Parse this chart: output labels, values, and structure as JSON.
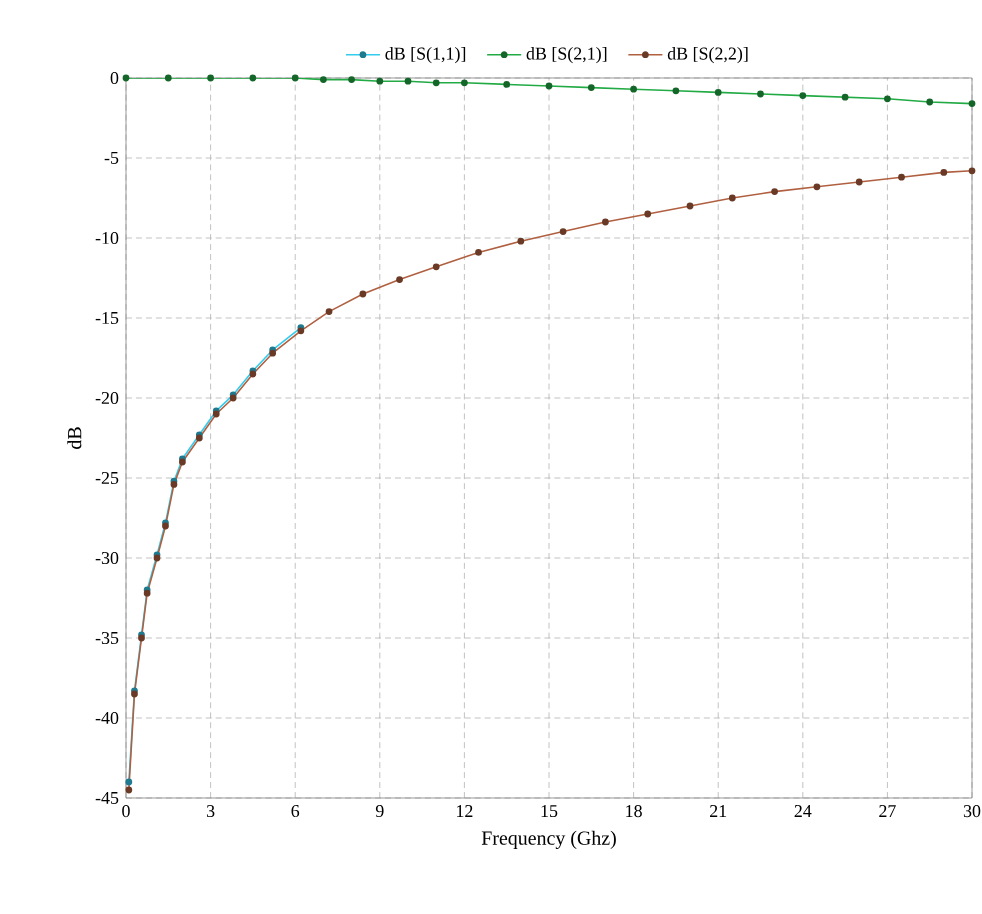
{
  "chart_data": {
    "type": "line",
    "xlabel": "Frequency (Ghz)",
    "ylabel": "dB",
    "xlim": [
      0,
      30
    ],
    "xticks": [
      0,
      3,
      6,
      9,
      12,
      15,
      18,
      21,
      24,
      27,
      30
    ],
    "ylim": [
      -45,
      0
    ],
    "yticks": [
      -45,
      -40,
      -35,
      -30,
      -25,
      -20,
      -15,
      -10,
      -5,
      0
    ],
    "grid": true,
    "legend": "top",
    "marker": "circle",
    "line_style": "solid",
    "series": [
      {
        "name": "dB [S(1,1)]",
        "color": "#33ccee",
        "x": [
          0.1,
          0.3,
          0.55,
          0.75,
          1.1,
          1.4,
          1.7,
          2,
          2.6,
          3.2,
          3.8,
          4.5,
          5.2,
          6.2
        ],
        "values": [
          -44,
          -38.3,
          -34.8,
          -32,
          -29.8,
          -27.8,
          -25.2,
          -23.8,
          -22.3,
          -20.8,
          -19.8,
          -18.3,
          -17,
          -15.6
        ]
      },
      {
        "name": "dB [S(2,1)]",
        "color": "#22aa44",
        "x": [
          0,
          1.5,
          3,
          4.5,
          6,
          7,
          8,
          9,
          10,
          11,
          12,
          13.5,
          15,
          16.5,
          18,
          19.5,
          21,
          22.5,
          24,
          25.5,
          27,
          28.5,
          30
        ],
        "values": [
          0,
          0,
          0,
          0,
          0,
          -0.1,
          -0.1,
          -0.2,
          -0.2,
          -0.3,
          -0.3,
          -0.4,
          -0.5,
          -0.6,
          -0.7,
          -0.8,
          -0.9,
          -1,
          -1.1,
          -1.2,
          -1.3,
          -1.5,
          -1.6
        ]
      },
      {
        "name": "dB [S(2,2)]",
        "color": "#b06040",
        "x": [
          0.1,
          0.3,
          0.55,
          0.75,
          1.1,
          1.4,
          1.7,
          2,
          2.6,
          3.2,
          3.8,
          4.5,
          5.2,
          6.2,
          7.2,
          8.4,
          9.7,
          11,
          12.5,
          14,
          15.5,
          17,
          18.5,
          20,
          21.5,
          23,
          24.5,
          26,
          27.5,
          29,
          30
        ],
        "values": [
          -44.5,
          -38.5,
          -35,
          -32.2,
          -30,
          -28,
          -25.4,
          -24,
          -22.5,
          -21,
          -20,
          -18.5,
          -17.2,
          -15.8,
          -14.6,
          -13.5,
          -12.6,
          -11.8,
          -10.9,
          -10.2,
          -9.6,
          -9,
          -8.5,
          -8,
          -7.5,
          -7.1,
          -6.8,
          -6.5,
          -6.2,
          -5.9,
          -5.8
        ]
      }
    ]
  }
}
